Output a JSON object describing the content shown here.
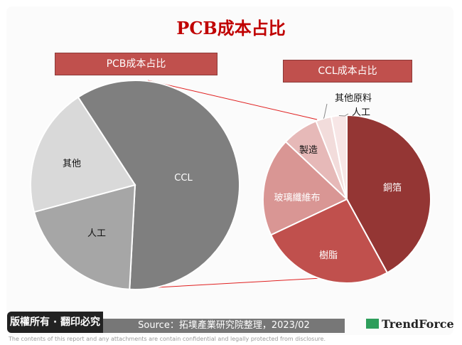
{
  "title": "PCB成本占比",
  "footer": {
    "copyright": "版權所有 · 翻印必究",
    "source": "Source：拓墣產業研究院整理，2023/02",
    "logo": "TrendForce",
    "disclaimer": "The contents of this report and any attachments are contain confidential and legally protected from disclosure."
  },
  "chart_data": [
    {
      "type": "pie",
      "title": "PCB成本占比",
      "categories": [
        "CCL",
        "人工",
        "其他"
      ],
      "values": [
        60,
        20,
        20
      ],
      "colors": [
        "#7f7f7f",
        "#a6a6a6",
        "#d9d9d9"
      ]
    },
    {
      "type": "pie",
      "title": "CCL成本占比",
      "categories": [
        "銅箔",
        "樹脂",
        "玻璃纖維布",
        "製造",
        "其他原料",
        "人工"
      ],
      "values": [
        42,
        26,
        19,
        7,
        3,
        3
      ],
      "colors": [
        "#943634",
        "#c0504d",
        "#d99694",
        "#e6b9b8",
        "#f2dcdb",
        "#f7e6e6"
      ]
    }
  ]
}
